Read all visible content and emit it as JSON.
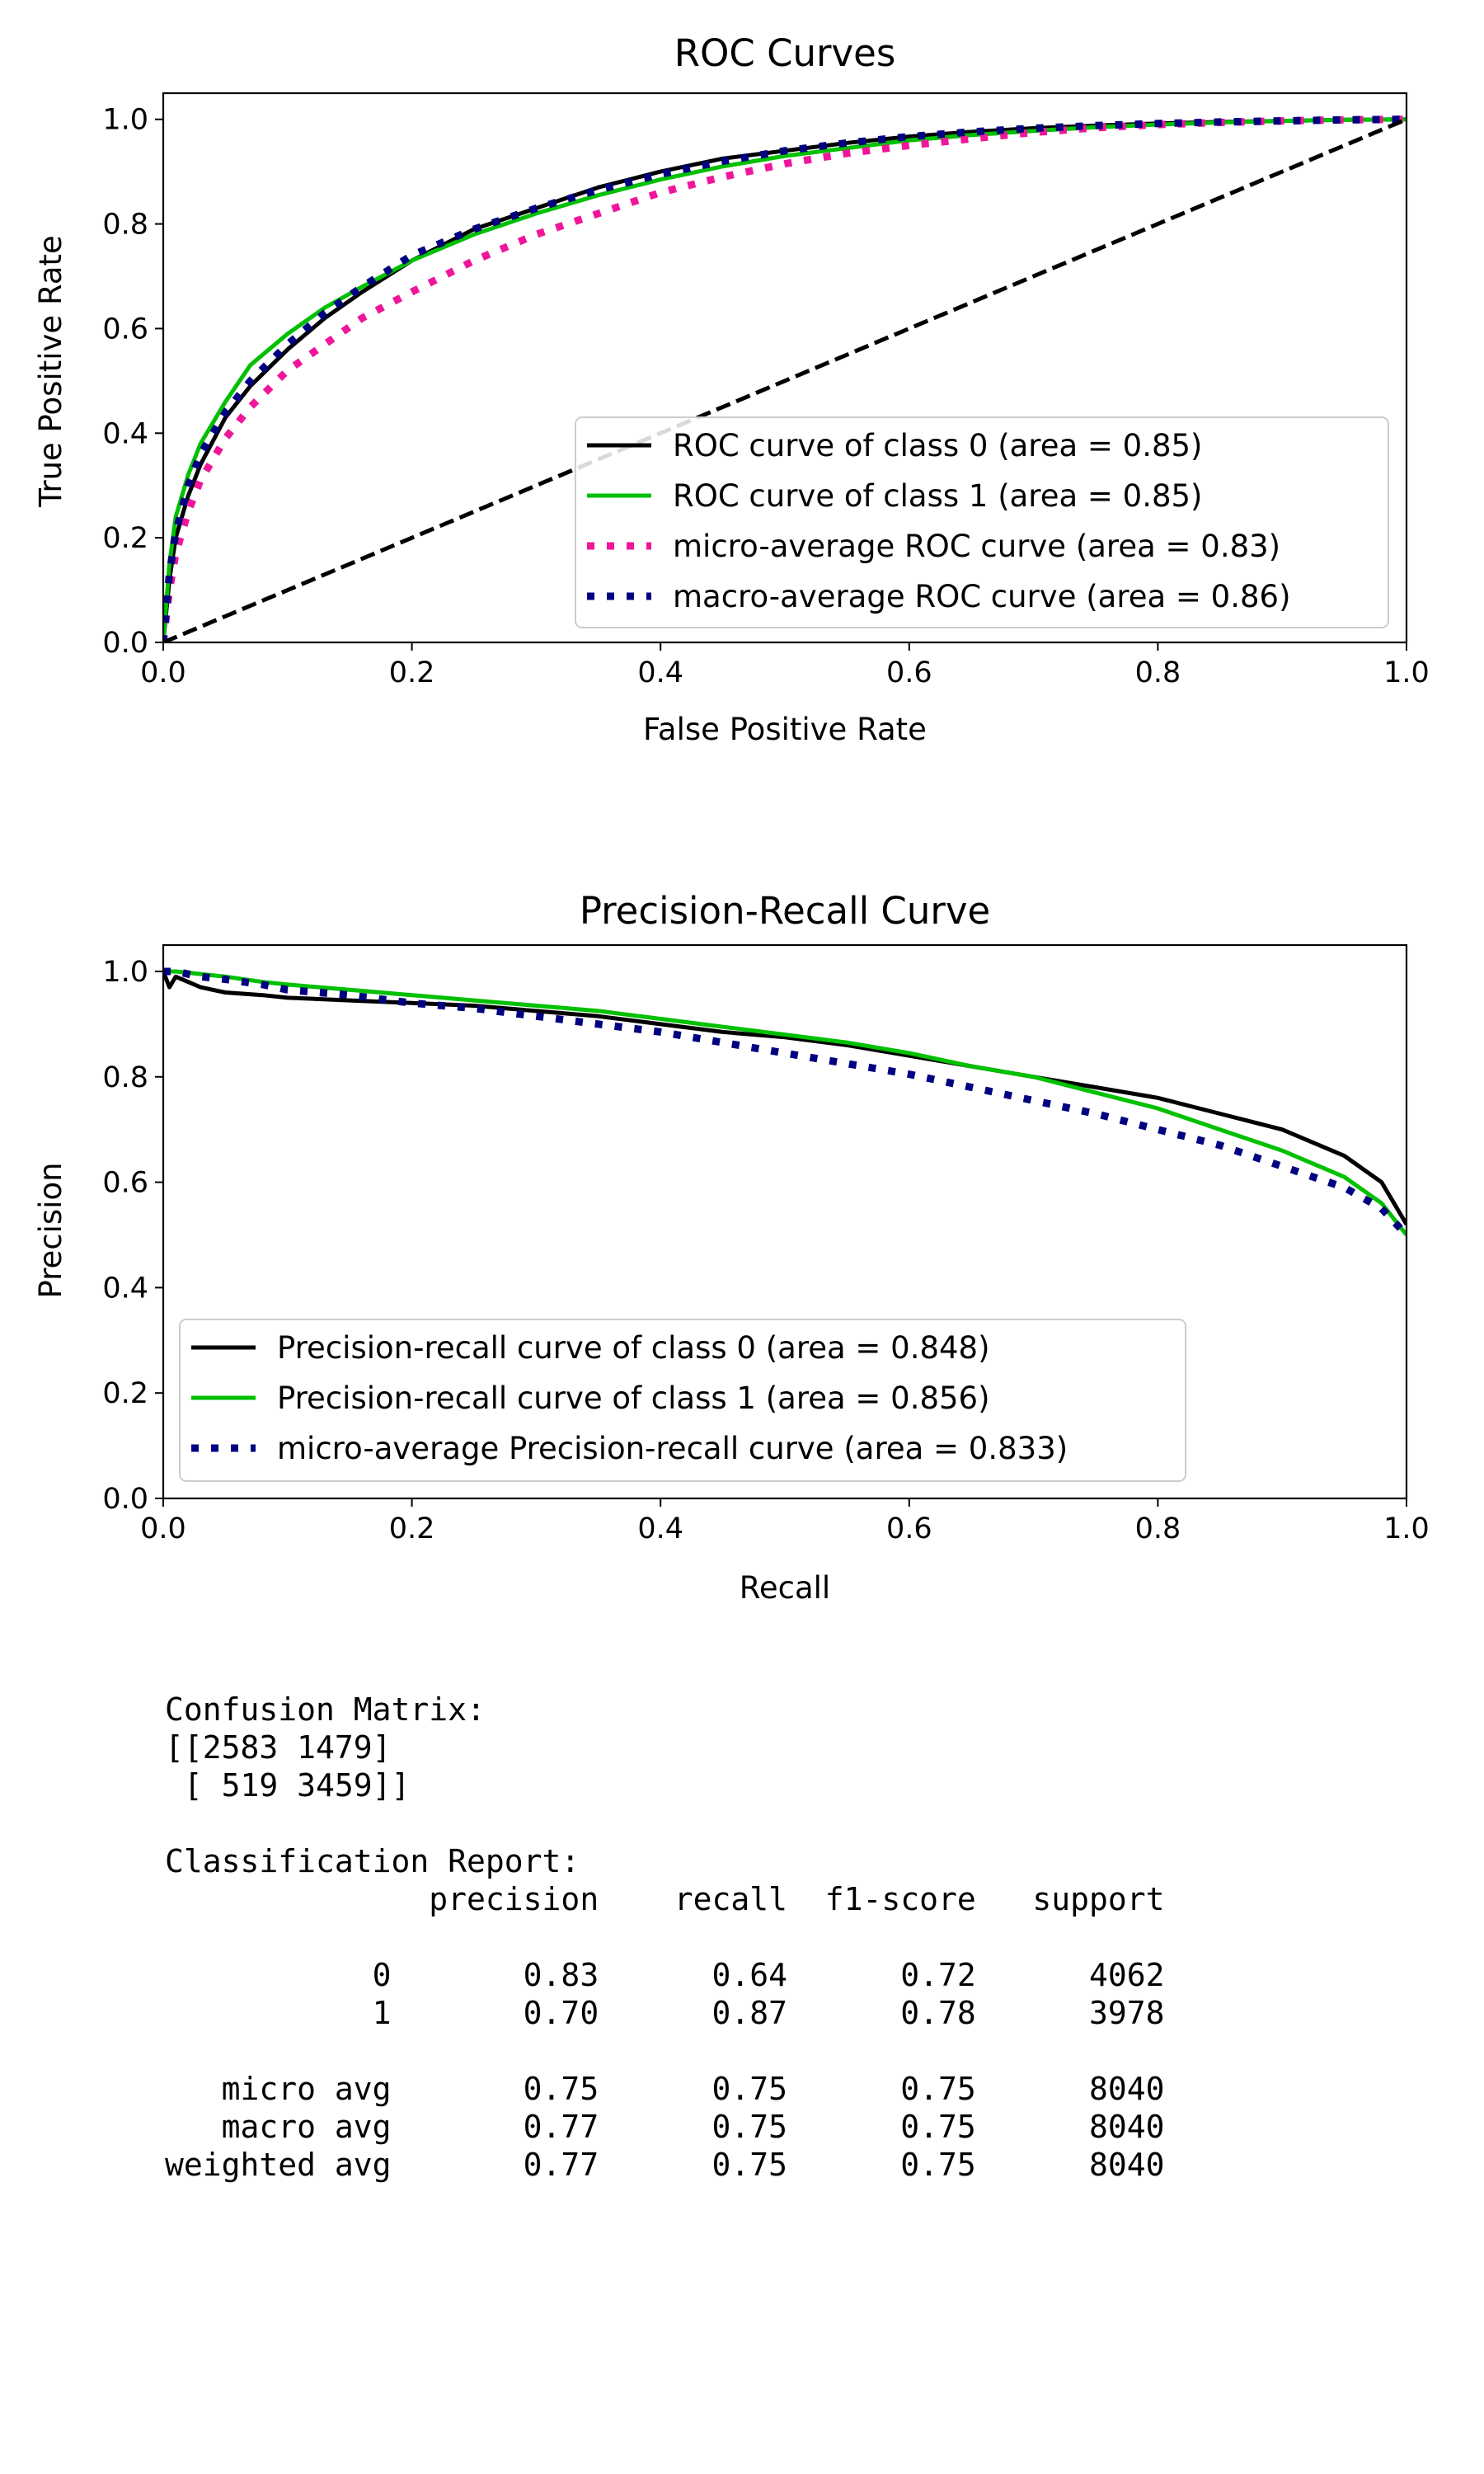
{
  "colors": {
    "class0": "#000000",
    "class1": "#00c000",
    "micro": "#f0169a",
    "macro": "#000080",
    "diagonal": "#000000"
  },
  "chart_data": [
    {
      "type": "line",
      "title": "ROC Curves",
      "xlabel": "False Positive Rate",
      "ylabel": "True Positive Rate",
      "xlim": [
        0.0,
        1.0
      ],
      "ylim": [
        0.0,
        1.05
      ],
      "xticks": [
        "0.0",
        "0.2",
        "0.4",
        "0.6",
        "0.8",
        "1.0"
      ],
      "yticks": [
        "0.0",
        "0.2",
        "0.4",
        "0.6",
        "0.8",
        "1.0"
      ],
      "grid": false,
      "legend_position": "lower-right",
      "series": [
        {
          "name": "ROC curve of class 0 (area = 0.85)",
          "style": "solid",
          "color": "#000000",
          "x": [
            0,
            0.005,
            0.01,
            0.02,
            0.03,
            0.05,
            0.07,
            0.1,
            0.13,
            0.16,
            0.2,
            0.25,
            0.3,
            0.35,
            0.4,
            0.45,
            0.5,
            0.55,
            0.6,
            0.65,
            0.7,
            0.75,
            0.8,
            0.85,
            0.9,
            0.95,
            1.0
          ],
          "y": [
            0,
            0.12,
            0.2,
            0.28,
            0.34,
            0.43,
            0.49,
            0.56,
            0.62,
            0.67,
            0.73,
            0.79,
            0.83,
            0.87,
            0.9,
            0.925,
            0.94,
            0.955,
            0.967,
            0.976,
            0.983,
            0.988,
            0.992,
            0.995,
            0.997,
            0.999,
            1.0
          ]
        },
        {
          "name": "ROC curve of class 1 (area = 0.85)",
          "style": "solid",
          "color": "#00c000",
          "x": [
            0,
            0.005,
            0.01,
            0.02,
            0.03,
            0.05,
            0.07,
            0.1,
            0.13,
            0.16,
            0.2,
            0.25,
            0.3,
            0.35,
            0.4,
            0.45,
            0.5,
            0.55,
            0.6,
            0.65,
            0.7,
            0.75,
            0.8,
            0.85,
            0.9,
            0.95,
            1.0
          ],
          "y": [
            0,
            0.15,
            0.24,
            0.32,
            0.38,
            0.46,
            0.53,
            0.59,
            0.64,
            0.68,
            0.73,
            0.78,
            0.82,
            0.855,
            0.885,
            0.91,
            0.93,
            0.945,
            0.96,
            0.97,
            0.978,
            0.985,
            0.99,
            0.994,
            0.997,
            0.999,
            1.0
          ]
        },
        {
          "name": "micro-average ROC curve (area = 0.83)",
          "style": "dotted",
          "color": "#f0169a",
          "x": [
            0,
            0.005,
            0.01,
            0.02,
            0.03,
            0.05,
            0.07,
            0.1,
            0.13,
            0.16,
            0.2,
            0.25,
            0.3,
            0.35,
            0.4,
            0.45,
            0.5,
            0.55,
            0.6,
            0.65,
            0.7,
            0.75,
            0.8,
            0.85,
            0.9,
            0.95,
            1.0
          ],
          "y": [
            0,
            0.1,
            0.17,
            0.25,
            0.31,
            0.39,
            0.45,
            0.52,
            0.57,
            0.62,
            0.67,
            0.73,
            0.78,
            0.82,
            0.86,
            0.89,
            0.915,
            0.935,
            0.95,
            0.963,
            0.975,
            0.984,
            0.99,
            0.994,
            0.997,
            0.999,
            1.0
          ]
        },
        {
          "name": "macro-average ROC curve (area = 0.86)",
          "style": "dotted",
          "color": "#000080",
          "x": [
            0,
            0.005,
            0.01,
            0.02,
            0.03,
            0.05,
            0.07,
            0.1,
            0.13,
            0.16,
            0.2,
            0.25,
            0.3,
            0.35,
            0.4,
            0.45,
            0.5,
            0.55,
            0.6,
            0.65,
            0.7,
            0.75,
            0.8,
            0.85,
            0.9,
            0.95,
            1.0
          ],
          "y": [
            0,
            0.13,
            0.21,
            0.3,
            0.36,
            0.44,
            0.5,
            0.57,
            0.63,
            0.68,
            0.74,
            0.79,
            0.83,
            0.865,
            0.895,
            0.92,
            0.94,
            0.955,
            0.967,
            0.976,
            0.983,
            0.988,
            0.992,
            0.995,
            0.997,
            0.999,
            1.0
          ]
        },
        {
          "name": "",
          "style": "dashed",
          "color": "#000000",
          "x": [
            0,
            1
          ],
          "y": [
            0,
            1
          ]
        }
      ]
    },
    {
      "type": "line",
      "title": "Precision-Recall Curve",
      "xlabel": "Recall",
      "ylabel": "Precision",
      "xlim": [
        0.0,
        1.0
      ],
      "ylim": [
        0.0,
        1.05
      ],
      "xticks": [
        "0.0",
        "0.2",
        "0.4",
        "0.6",
        "0.8",
        "1.0"
      ],
      "yticks": [
        "0.0",
        "0.2",
        "0.4",
        "0.6",
        "0.8",
        "1.0"
      ],
      "grid": false,
      "legend_position": "lower-left",
      "series": [
        {
          "name": "Precision-recall curve of class 0 (area = 0.848)",
          "style": "solid",
          "color": "#000000",
          "x": [
            0,
            0.005,
            0.01,
            0.02,
            0.03,
            0.05,
            0.08,
            0.1,
            0.15,
            0.2,
            0.25,
            0.3,
            0.35,
            0.4,
            0.45,
            0.5,
            0.55,
            0.6,
            0.65,
            0.7,
            0.75,
            0.8,
            0.85,
            0.9,
            0.95,
            0.98,
            1.0
          ],
          "y": [
            1.0,
            0.97,
            0.99,
            0.98,
            0.97,
            0.96,
            0.955,
            0.95,
            0.945,
            0.94,
            0.935,
            0.925,
            0.915,
            0.9,
            0.885,
            0.875,
            0.86,
            0.84,
            0.82,
            0.8,
            0.78,
            0.76,
            0.73,
            0.7,
            0.65,
            0.6,
            0.52
          ]
        },
        {
          "name": "Precision-recall curve of class 1 (area = 0.856)",
          "style": "solid",
          "color": "#00c000",
          "x": [
            0,
            0.01,
            0.03,
            0.05,
            0.08,
            0.1,
            0.15,
            0.2,
            0.25,
            0.3,
            0.35,
            0.4,
            0.45,
            0.5,
            0.55,
            0.6,
            0.65,
            0.7,
            0.75,
            0.8,
            0.85,
            0.9,
            0.95,
            0.98,
            1.0
          ],
          "y": [
            1.0,
            1.0,
            0.995,
            0.99,
            0.98,
            0.975,
            0.965,
            0.955,
            0.945,
            0.935,
            0.925,
            0.91,
            0.895,
            0.88,
            0.865,
            0.845,
            0.82,
            0.8,
            0.77,
            0.74,
            0.7,
            0.66,
            0.61,
            0.56,
            0.5
          ]
        },
        {
          "name": "micro-average Precision-recall curve (area = 0.833)",
          "style": "dotted",
          "color": "#000080",
          "x": [
            0,
            0.01,
            0.03,
            0.05,
            0.08,
            0.1,
            0.15,
            0.2,
            0.25,
            0.3,
            0.35,
            0.4,
            0.45,
            0.5,
            0.55,
            0.6,
            0.65,
            0.7,
            0.75,
            0.8,
            0.85,
            0.9,
            0.95,
            0.98,
            1.0
          ],
          "y": [
            1.0,
            1.0,
            0.99,
            0.985,
            0.975,
            0.965,
            0.955,
            0.94,
            0.93,
            0.915,
            0.9,
            0.885,
            0.865,
            0.845,
            0.825,
            0.805,
            0.78,
            0.755,
            0.73,
            0.7,
            0.67,
            0.63,
            0.59,
            0.55,
            0.5
          ]
        }
      ]
    }
  ],
  "report": {
    "confusion_title": "Confusion Matrix:",
    "matrix_lines": [
      "[[2583 1479]",
      " [ 519 3459]]"
    ],
    "classification_title": "Classification Report:",
    "header": "              precision    recall  f1-score   support",
    "row_lines": [
      "           0       0.83      0.64      0.72      4062",
      "           1       0.70      0.87      0.78      3978"
    ],
    "avg_lines": [
      "   micro avg       0.75      0.75      0.75      8040",
      "   macro avg       0.77      0.75      0.75      8040",
      "weighted avg       0.77      0.75      0.75      8040"
    ]
  }
}
